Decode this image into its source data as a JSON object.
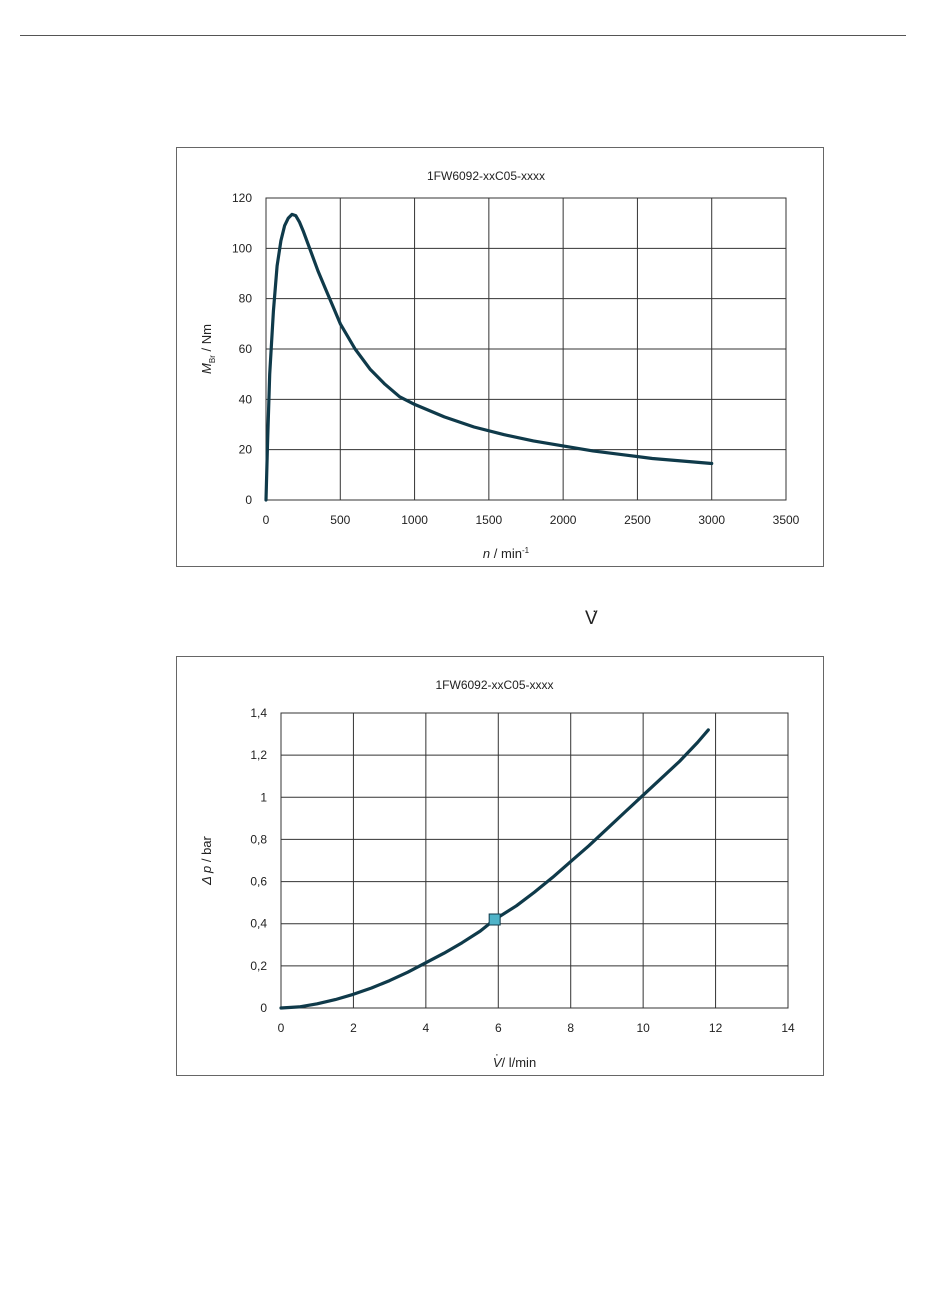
{
  "page": {
    "symbol_text": "V",
    "symbol_dot": "·"
  },
  "chart_data": [
    {
      "type": "line",
      "title": "1FW6092-xxC05-xxxx",
      "xlabel": "n / min⁻¹",
      "xlabel_parts": {
        "var": "n",
        "unit": " / min",
        "sup": "-1"
      },
      "ylabel": "M_Br / Nm",
      "ylabel_parts": {
        "var": "M",
        "sub": "Br",
        "unit": " / Nm"
      },
      "xlim": [
        0,
        3500
      ],
      "ylim": [
        0,
        120
      ],
      "x_ticks": [
        "0",
        "500",
        "1000",
        "1500",
        "2000",
        "2500",
        "3000",
        "3500"
      ],
      "y_ticks": [
        "0",
        "20",
        "40",
        "60",
        "80",
        "100",
        "120"
      ],
      "grid": true,
      "series": [
        {
          "color": "#0f3a4a",
          "x": [
            0,
            10,
            25,
            50,
            75,
            100,
            125,
            150,
            175,
            200,
            225,
            250,
            300,
            350,
            400,
            450,
            500,
            600,
            700,
            800,
            900,
            1000,
            1200,
            1400,
            1600,
            1800,
            2000,
            2200,
            2400,
            2600,
            2800,
            3000
          ],
          "y": [
            0,
            22,
            50,
            75,
            93,
            103,
            109,
            112,
            113.5,
            113,
            110.5,
            107,
            99,
            91,
            84,
            77,
            70,
            60,
            52,
            46,
            41,
            38,
            33,
            29,
            26,
            23.5,
            21.5,
            19.5,
            18,
            16.5,
            15.5,
            14.5
          ]
        }
      ]
    },
    {
      "type": "line",
      "title": "1FW6092-xxC05-xxxx",
      "xlabel": "V̇ / l/min",
      "xlabel_parts": {
        "var": "V",
        "dot": "·",
        "unit": "/ l/min"
      },
      "ylabel": "Δ p / bar",
      "ylabel_parts": {
        "var": "Δ p",
        "unit": " / bar"
      },
      "xlim": [
        0,
        14
      ],
      "ylim": [
        0,
        1.4
      ],
      "x_ticks": [
        "0",
        "2",
        "4",
        "6",
        "8",
        "10",
        "12",
        "14"
      ],
      "y_ticks": [
        "0",
        "0,2",
        "0,4",
        "0,6",
        "0,8",
        "1",
        "1,2",
        "1,4"
      ],
      "grid": true,
      "series": [
        {
          "color": "#0f3a4a",
          "x": [
            0,
            0.5,
            1,
            1.5,
            2,
            2.5,
            3,
            3.5,
            4,
            4.5,
            5,
            5.5,
            5.9,
            6.5,
            7,
            7.5,
            8,
            8.5,
            9,
            9.5,
            10,
            10.5,
            11,
            11.5,
            11.8
          ],
          "y": [
            0,
            0.005,
            0.02,
            0.04,
            0.065,
            0.095,
            0.13,
            0.17,
            0.215,
            0.26,
            0.31,
            0.365,
            0.42,
            0.485,
            0.55,
            0.62,
            0.695,
            0.77,
            0.85,
            0.93,
            1.01,
            1.09,
            1.17,
            1.26,
            1.32
          ]
        }
      ],
      "marker": {
        "x": 5.9,
        "y": 0.42,
        "color": "#4fb3c8"
      }
    }
  ]
}
